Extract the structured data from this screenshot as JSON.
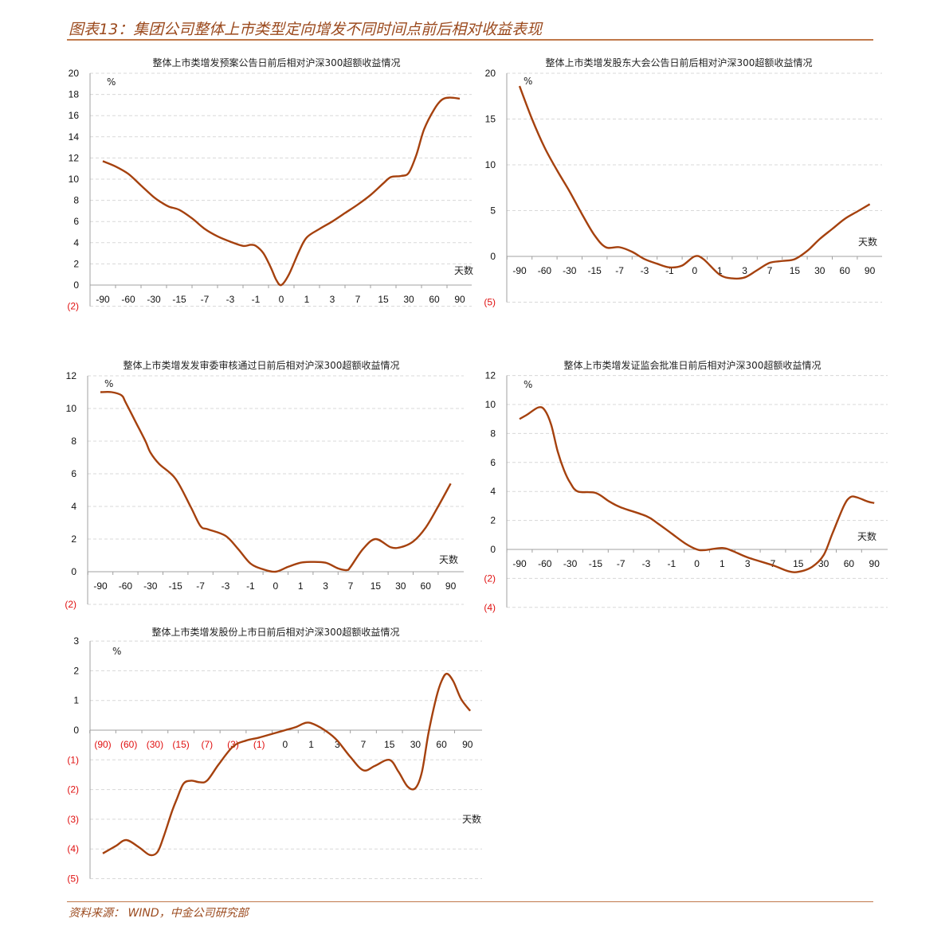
{
  "figure_title": "图表13：集团公司整体上市类型定向增发不同时间点前后相对收益表现",
  "source": "资料来源：  WIND，中金公司研究部",
  "colors": {
    "line": "#A5410E",
    "negative_label": "#E01010",
    "title": "#9B4A1E",
    "grid": "#D8D8D8",
    "axis": "#A0A0A0"
  },
  "chart_data": [
    {
      "type": "line",
      "title": "整体上市类增发预案公告日前后相对沪深300超额收益情况",
      "ylabel": "%",
      "xlabel": "天数",
      "categories": [
        "-90",
        "-60",
        "-30",
        "-15",
        "-7",
        "-3",
        "-1",
        "0",
        "1",
        "3",
        "7",
        "15",
        "30",
        "60",
        "90"
      ],
      "ylim": [
        -2,
        20
      ],
      "ystep": 2,
      "yticks": [
        "(2)",
        "0",
        "2",
        "4",
        "6",
        "8",
        "10",
        "12",
        "14",
        "16",
        "18",
        "20"
      ],
      "series": [
        {
          "name": "超额收益",
          "x": [
            0,
            0.5,
            1,
            1.5,
            2,
            2.3,
            2.6,
            3,
            3.5,
            4,
            4.5,
            5,
            5.5,
            5.8,
            6,
            6.3,
            6.6,
            6.8,
            7,
            7.3,
            7.7,
            8,
            8.5,
            9,
            9.5,
            10,
            10.5,
            11,
            11.3,
            11.7,
            12,
            12.3,
            12.6,
            13,
            13.3,
            13.6,
            14
          ],
          "y": [
            11.7,
            11.2,
            10.5,
            9.4,
            8.3,
            7.8,
            7.4,
            7.1,
            6.3,
            5.3,
            4.6,
            4.1,
            3.7,
            3.8,
            3.7,
            3.0,
            1.6,
            0.5,
            0,
            1.0,
            3.2,
            4.5,
            5.3,
            6.0,
            6.8,
            7.6,
            8.5,
            9.6,
            10.2,
            10.3,
            10.6,
            12.3,
            14.7,
            16.6,
            17.5,
            17.7,
            17.6
          ]
        }
      ]
    },
    {
      "type": "line",
      "title": "整体上市类增发股东大会公告日前后相对沪深300超额收益情况",
      "ylabel": "%",
      "xlabel": "天数",
      "categories": [
        "-90",
        "-60",
        "-30",
        "-15",
        "-7",
        "-3",
        "-1",
        "0",
        "1",
        "3",
        "7",
        "15",
        "30",
        "60",
        "90"
      ],
      "ylim": [
        -5,
        20
      ],
      "ystep": 5,
      "yticks": [
        "(5)",
        "0",
        "5",
        "10",
        "15",
        "20"
      ],
      "series": [
        {
          "name": "超额收益",
          "x": [
            0,
            0.5,
            1,
            1.5,
            2,
            2.5,
            3,
            3.45,
            4,
            4.5,
            5,
            5.5,
            6,
            6.5,
            7,
            7.35,
            8,
            8.5,
            9,
            9.5,
            10,
            10.5,
            11,
            11.5,
            12,
            12.5,
            13,
            13.5,
            14
          ],
          "y": [
            18.6,
            15.0,
            11.9,
            9.4,
            7.1,
            4.6,
            2.3,
            1.0,
            1.0,
            0.5,
            -0.3,
            -0.8,
            -1.2,
            -1.0,
            0,
            -0.3,
            -2.0,
            -2.4,
            -2.3,
            -1.5,
            -0.7,
            -0.5,
            -0.3,
            0.6,
            1.9,
            3.0,
            4.1,
            4.9,
            5.7
          ]
        }
      ]
    },
    {
      "type": "line",
      "title": "整体上市类增发发审委审核通过日前后相对沪深300超额收益情况",
      "ylabel": "%",
      "xlabel": "天数",
      "categories": [
        "-90",
        "-60",
        "-30",
        "-15",
        "-7",
        "-3",
        "-1",
        "0",
        "1",
        "3",
        "7",
        "15",
        "30",
        "60",
        "90"
      ],
      "ylim": [
        -2,
        12
      ],
      "ystep": 2,
      "yticks": [
        "(2)",
        "0",
        "2",
        "4",
        "6",
        "8",
        "10",
        "12"
      ],
      "series": [
        {
          "name": "超额收益",
          "x": [
            0,
            0.45,
            0.85,
            1,
            1.4,
            1.8,
            2,
            2.35,
            3,
            3.6,
            4,
            4.3,
            5,
            5.5,
            6,
            6.5,
            7,
            7.5,
            8,
            8.4,
            9,
            9.5,
            9.85,
            10,
            10.5,
            11,
            11.6,
            12,
            12.5,
            13,
            13.5,
            14
          ],
          "y": [
            11.0,
            11.0,
            10.8,
            10.4,
            9.2,
            8.0,
            7.3,
            6.6,
            5.7,
            4.0,
            2.8,
            2.6,
            2.2,
            1.4,
            0.5,
            0.15,
            0,
            0.3,
            0.55,
            0.6,
            0.55,
            0.2,
            0.1,
            0.3,
            1.4,
            2.0,
            1.5,
            1.5,
            1.85,
            2.7,
            4.0,
            5.4
          ]
        }
      ]
    },
    {
      "type": "line",
      "title": "整体上市类增发证监会批准日前后相对沪深300超额收益情况",
      "ylabel": "%",
      "xlabel": "天数",
      "categories": [
        "-90",
        "-60",
        "-30",
        "-15",
        "-7",
        "-3",
        "-1",
        "0",
        "1",
        "3",
        "7",
        "15",
        "30",
        "60",
        "90"
      ],
      "ylim": [
        -4,
        12
      ],
      "ystep": 2,
      "yticks": [
        "(4)",
        "(2)",
        "0",
        "2",
        "4",
        "6",
        "8",
        "10",
        "12"
      ],
      "series": [
        {
          "name": "超额收益",
          "x": [
            0,
            0.3,
            0.75,
            1,
            1.25,
            1.5,
            1.75,
            2,
            2.3,
            3,
            3.55,
            4,
            5,
            5.45,
            6,
            6.55,
            7,
            7.3,
            8,
            8.4,
            9,
            10,
            10.6,
            11,
            11.55,
            12,
            12.35,
            12.8,
            13.05,
            13.3,
            13.75,
            14
          ],
          "y": [
            9.0,
            9.3,
            9.8,
            9.6,
            8.6,
            6.8,
            5.5,
            4.6,
            4.0,
            3.9,
            3.3,
            2.9,
            2.3,
            1.8,
            1.1,
            0.4,
            0,
            -0.05,
            0.1,
            -0.1,
            -0.55,
            -1.1,
            -1.5,
            -1.55,
            -1.2,
            -0.4,
            1.1,
            3.0,
            3.6,
            3.6,
            3.3,
            3.2
          ]
        }
      ]
    },
    {
      "type": "line",
      "title": "整体上市类增发股份上市日前后相对沪深300超额收益情况",
      "ylabel": "%",
      "xlabel": "天数",
      "categories": [
        "(90)",
        "(60)",
        "(30)",
        "(15)",
        "(7)",
        "(3)",
        "(1)",
        "0",
        "1",
        "3",
        "7",
        "15",
        "30",
        "60",
        "90"
      ],
      "ylim": [
        -5,
        3
      ],
      "ystep": 1,
      "yticks": [
        "(5)",
        "(4)",
        "(3)",
        "(2)",
        "(1)",
        "0",
        "1",
        "2",
        "3"
      ],
      "series": [
        {
          "name": "超额收益",
          "x": [
            0,
            0.5,
            0.9,
            1.4,
            1.8,
            2.1,
            2.35,
            2.65,
            2.85,
            3.1,
            3.4,
            3.7,
            4,
            4.45,
            5,
            5.5,
            6,
            6.6,
            7,
            7.4,
            7.8,
            8.1,
            8.6,
            9,
            9.5,
            10,
            10.45,
            11,
            11.35,
            11.7,
            12,
            12.25,
            12.5,
            12.8,
            13,
            13.2,
            13.45,
            13.75,
            14.1
          ],
          "y": [
            -4.15,
            -3.9,
            -3.7,
            -3.95,
            -4.2,
            -4.1,
            -3.55,
            -2.75,
            -2.3,
            -1.8,
            -1.7,
            -1.75,
            -1.7,
            -1.15,
            -0.55,
            -0.35,
            -0.25,
            -0.1,
            0,
            0.1,
            0.25,
            0.2,
            -0.05,
            -0.35,
            -0.9,
            -1.35,
            -1.2,
            -1.0,
            -1.4,
            -1.9,
            -1.95,
            -1.4,
            -0.1,
            1.1,
            1.65,
            1.9,
            1.65,
            1.05,
            0.65
          ]
        }
      ]
    }
  ]
}
